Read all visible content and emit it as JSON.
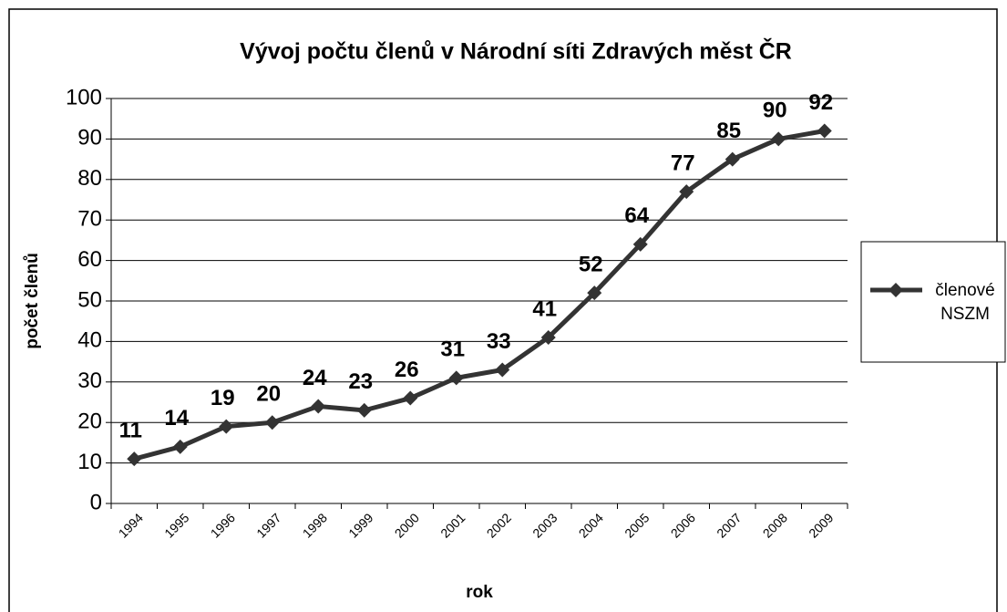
{
  "chart_data": {
    "type": "line",
    "title": "Vývoj počtu členů v Národní síti Zdravých měst ČR",
    "x_label": "rok",
    "y_label": "počet členů",
    "categories": [
      "1994",
      "1995",
      "1996",
      "1997",
      "1998",
      "1999",
      "2000",
      "2001",
      "2002",
      "2003",
      "2004",
      "2005",
      "2006",
      "2007",
      "2008",
      "2009"
    ],
    "series": [
      {
        "name": "členové NSZM",
        "color": "#333333",
        "values": [
          11,
          14,
          19,
          20,
          24,
          23,
          26,
          31,
          33,
          41,
          52,
          64,
          77,
          85,
          90,
          92
        ]
      }
    ],
    "ylim": [
      0,
      100
    ],
    "yticks": [
      0,
      10,
      20,
      30,
      40,
      50,
      60,
      70,
      80,
      90,
      100
    ],
    "grid": true,
    "legend": "right"
  }
}
